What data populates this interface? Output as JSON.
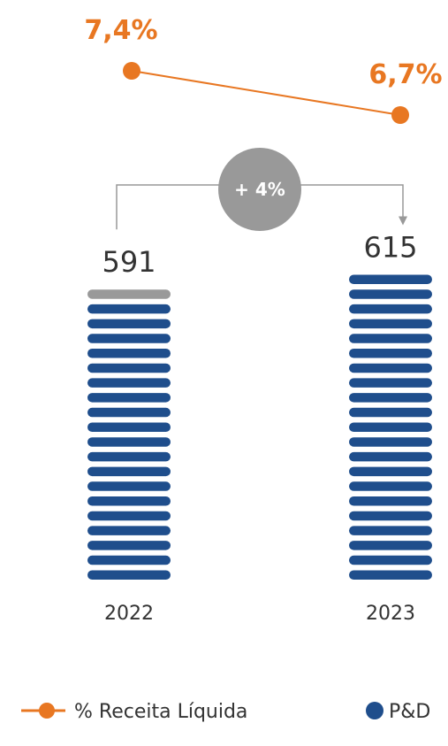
{
  "chart_data": {
    "type": "bar",
    "categories": [
      "2022",
      "2023"
    ],
    "series": [
      {
        "name": "P&D",
        "values": [
          591,
          615
        ],
        "color": "#1f4e8c"
      },
      {
        "name": "% Receita Líquida",
        "type": "line",
        "values": [
          7.4,
          6.7
        ],
        "labels": [
          "7,4%",
          "6,7%"
        ],
        "color": "#e87722"
      }
    ],
    "value_labels": [
      "591",
      "615"
    ],
    "growth_label": "+ 4%",
    "growth_color": "#999999",
    "increment_color": "#999999",
    "legend_placement": "bottom",
    "grid": false
  },
  "legend": {
    "line_label": "% Receita Líquida",
    "bar_label": "P&D"
  }
}
